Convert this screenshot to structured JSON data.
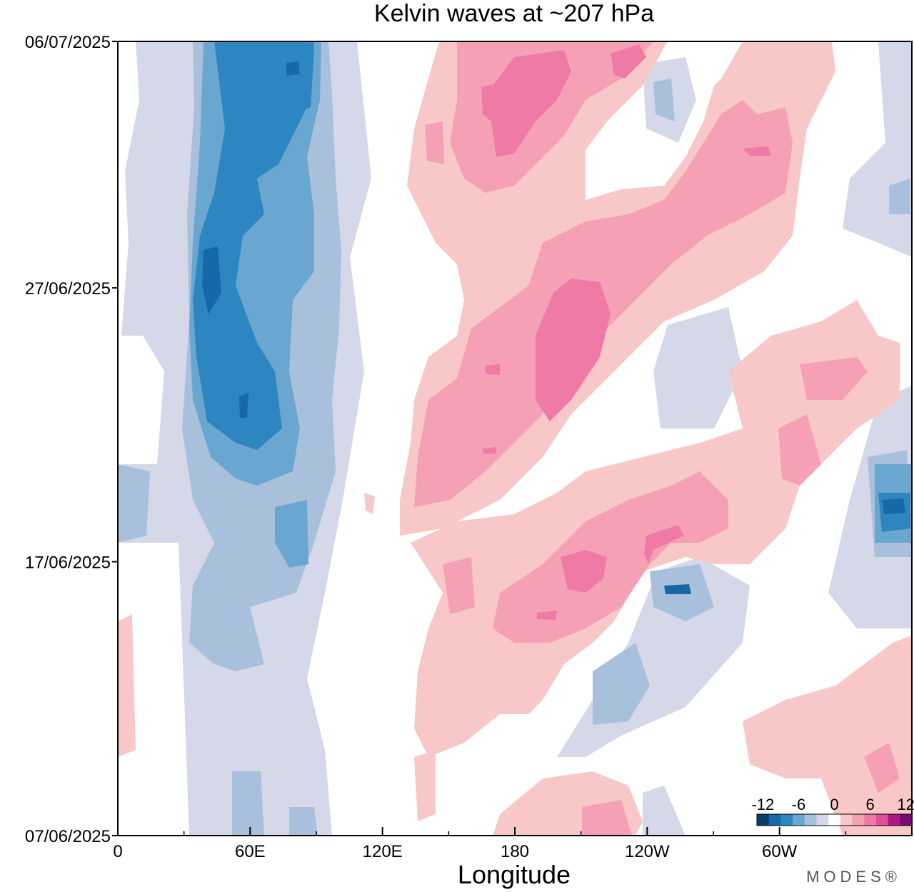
{
  "chart_data": {
    "type": "heatmap",
    "title": "Kelvin waves at ~207 hPa",
    "xlabel": "Longitude",
    "ylabel": "",
    "x_ticks": [
      {
        "lon": 0,
        "label": "0"
      },
      {
        "lon": 60,
        "label": "60E"
      },
      {
        "lon": 120,
        "label": "120E"
      },
      {
        "lon": 180,
        "label": "180"
      },
      {
        "lon": 240,
        "label": "120W"
      },
      {
        "lon": 300,
        "label": "60W"
      }
    ],
    "x_minor_ticks": [
      30,
      90,
      150,
      210,
      270,
      330
    ],
    "xlim": [
      0,
      360
    ],
    "y_ticks": [
      {
        "day": 0,
        "label": "07/06/2025"
      },
      {
        "day": 10,
        "label": "17/06/2025"
      },
      {
        "day": 20,
        "label": "27/06/2025"
      },
      {
        "day": 29,
        "label": "06/07/2025"
      }
    ],
    "ylim_days": [
      0,
      29
    ],
    "colorbar": {
      "labels": [
        "-12",
        "-6",
        "0",
        "6",
        "12"
      ],
      "levels": [
        -12,
        -10,
        -8,
        -6,
        -4,
        -2,
        2,
        4,
        6,
        8,
        10,
        12
      ],
      "colors": [
        "#0b3e66",
        "#1668a8",
        "#2e86c1",
        "#6aa7d0",
        "#a9c0dd",
        "#d5d8e8",
        "#ffffff",
        "#f8c8c8",
        "#f6a0b5",
        "#f07aa6",
        "#e0509a",
        "#b01888",
        "#7a0a74"
      ]
    },
    "features": [
      {
        "name": "negative-band-west",
        "value": -10,
        "lon": [
          30,
          85
        ],
        "days": [
          0,
          29
        ]
      },
      {
        "name": "positive-wave-1",
        "value": 8,
        "lon": [
          140,
          290
        ],
        "days": [
          12,
          29
        ]
      },
      {
        "name": "positive-wave-2",
        "value": 8,
        "lon": [
          150,
          280
        ],
        "days": [
          6,
          16
        ]
      },
      {
        "name": "negative-patch-east",
        "value": -6,
        "lon": [
          210,
          260
        ],
        "days": [
          5,
          10
        ]
      }
    ],
    "grid": false
  },
  "watermark": "MODES®"
}
